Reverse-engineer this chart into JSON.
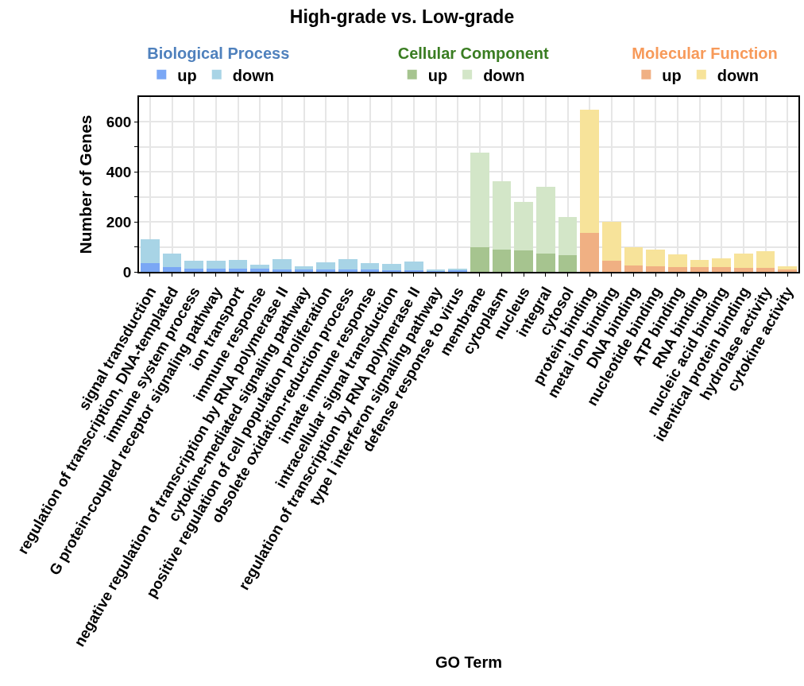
{
  "chart_data": {
    "type": "bar",
    "title": "High-grade vs. Low-grade",
    "xlabel": "GO Term",
    "ylabel": "Number of Genes",
    "legend_title": [
      "Biological Process",
      "Cellular Component",
      "Molecular Function"
    ],
    "categories": [
      "signal transduction",
      "regulation of transcription, DNA-templated",
      "immune system process",
      "G protein-coupled receptor signaling pathway",
      "ion transport",
      "immune response",
      "negative regulation of transcription by RNA polymerase II",
      "cytokine-mediated signaling pathway",
      "positive regulation of cell population proliferation",
      "obsolete oxidation-reduction process",
      "innate immune response",
      "intracellular signal transduction",
      "regulation of transcription by RNA polymerase II",
      "type I interferon signaling pathway",
      "defense response to virus",
      "membrane",
      "cytoplasm",
      "nucleus",
      "integral",
      "cytosol",
      "protein binding",
      "metal ion binding",
      "DNA binding",
      "nucleotide binding",
      "ATP binding",
      "RNA binding",
      "nucleic acid binding",
      "identical protein binding",
      "hydrolase activity",
      "cytokine activity"
    ],
    "series": [
      {
        "name": "up",
        "color": "#7aa7f5",
        "values": [
          35,
          20,
          13,
          13,
          13,
          12,
          10,
          8,
          8,
          8,
          8,
          6,
          6,
          5,
          6,
          null,
          null,
          null,
          null,
          null,
          null,
          null,
          null,
          null,
          null,
          null,
          null,
          null,
          null,
          null
        ]
      },
      {
        "name": "down",
        "color": "#a8d4e6",
        "values": [
          95,
          53,
          31,
          32,
          34,
          17,
          40,
          15,
          31,
          42,
          28,
          25,
          36,
          2,
          7,
          null,
          null,
          null,
          null,
          null,
          null,
          null,
          null,
          null,
          null,
          null,
          null,
          null,
          null,
          null
        ]
      },
      {
        "name": "up",
        "color": "#a6c48f",
        "values": [
          null,
          null,
          null,
          null,
          null,
          null,
          null,
          null,
          null,
          null,
          null,
          null,
          null,
          null,
          null,
          98,
          90,
          87,
          72,
          67,
          null,
          null,
          null,
          null,
          null,
          null,
          null,
          null,
          null,
          null
        ]
      },
      {
        "name": "down",
        "color": "#d3e6c8",
        "values": [
          null,
          null,
          null,
          null,
          null,
          null,
          null,
          null,
          null,
          null,
          null,
          null,
          null,
          null,
          null,
          378,
          274,
          192,
          270,
          152,
          null,
          null,
          null,
          null,
          null,
          null,
          null,
          null,
          null,
          null
        ]
      },
      {
        "name": "up",
        "color": "#f0b083",
        "values": [
          null,
          null,
          null,
          null,
          null,
          null,
          null,
          null,
          null,
          null,
          null,
          null,
          null,
          null,
          null,
          null,
          null,
          null,
          null,
          null,
          156,
          44,
          27,
          23,
          18,
          18,
          18,
          15,
          15,
          8
        ]
      },
      {
        "name": "down",
        "color": "#f7e39a",
        "values": [
          null,
          null,
          null,
          null,
          null,
          null,
          null,
          null,
          null,
          null,
          null,
          null,
          null,
          null,
          null,
          null,
          null,
          null,
          null,
          null,
          494,
          155,
          72,
          67,
          53,
          29,
          35,
          58,
          67,
          13
        ]
      }
    ],
    "ylim": [
      0,
      700
    ],
    "yticks": [
      0,
      {
        "value": 100,
        "label": null
      },
      200,
      {
        "value": 300,
        "label": null
      },
      400,
      {
        "value": 500,
        "label": null
      },
      600
    ],
    "stacked": true,
    "grid": true,
    "legend": "top"
  }
}
